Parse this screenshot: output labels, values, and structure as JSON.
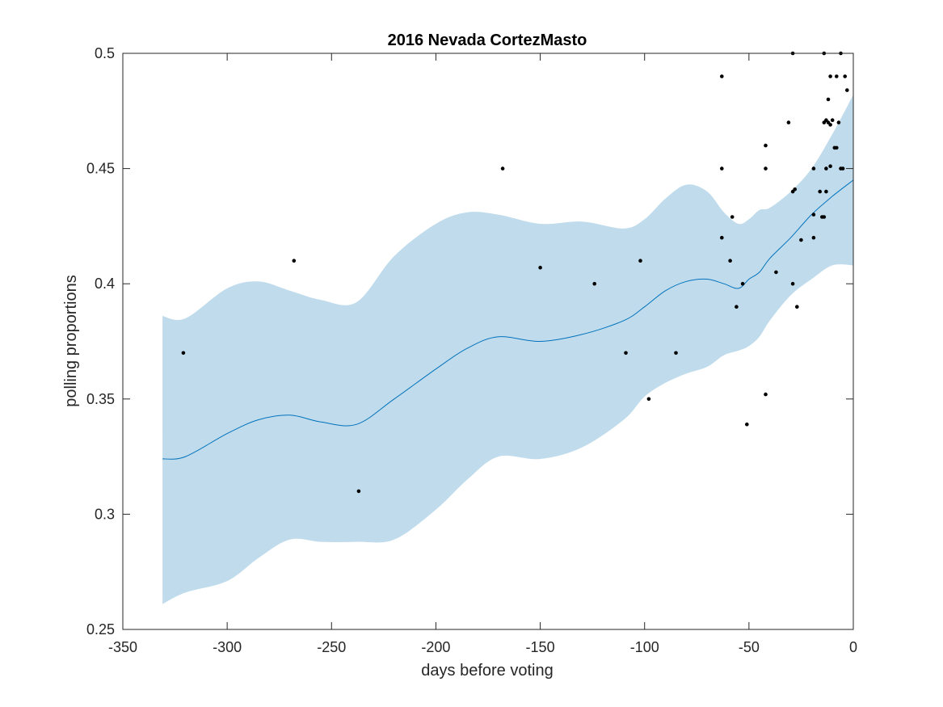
{
  "chart_data": {
    "type": "line",
    "title": "2016 Nevada CortezMasto",
    "xlabel": "days before voting",
    "ylabel": "polling proportions",
    "xlim": [
      -350,
      0
    ],
    "ylim": [
      0.25,
      0.5
    ],
    "xticks": [
      -350,
      -300,
      -250,
      -200,
      -150,
      -100,
      -50,
      0
    ],
    "yticks": [
      0.25,
      0.3,
      0.35,
      0.4,
      0.45,
      0.5
    ],
    "xtick_labels": [
      "-350",
      "-300",
      "-250",
      "-200",
      "-150",
      "-100",
      "-50",
      "0"
    ],
    "ytick_labels": [
      "0.25",
      "0.3",
      "0.35",
      "0.4",
      "0.45",
      "0.5"
    ],
    "grid": false,
    "colors": {
      "band": "#c0dcec",
      "line": "#0072bd",
      "points": "#000000",
      "axes": "#262626"
    },
    "fit": {
      "x": [
        -331,
        -320,
        -300,
        -285,
        -270,
        -255,
        -238,
        -220,
        -200,
        -185,
        -170,
        -150,
        -130,
        -110,
        -100,
        -90,
        -80,
        -70,
        -62,
        -55,
        -50,
        -45,
        -40,
        -30,
        -20,
        -10,
        0
      ],
      "mean": [
        0.324,
        0.325,
        0.335,
        0.341,
        0.343,
        0.34,
        0.339,
        0.35,
        0.363,
        0.372,
        0.377,
        0.375,
        0.378,
        0.384,
        0.39,
        0.397,
        0.401,
        0.402,
        0.4,
        0.398,
        0.402,
        0.405,
        0.411,
        0.42,
        0.43,
        0.438,
        0.445
      ],
      "upper": [
        0.386,
        0.385,
        0.398,
        0.401,
        0.397,
        0.393,
        0.392,
        0.412,
        0.426,
        0.431,
        0.43,
        0.426,
        0.427,
        0.424,
        0.428,
        0.437,
        0.443,
        0.44,
        0.431,
        0.426,
        0.428,
        0.432,
        0.433,
        0.44,
        0.45,
        0.465,
        0.482
      ],
      "lower": [
        0.261,
        0.266,
        0.271,
        0.281,
        0.289,
        0.288,
        0.288,
        0.289,
        0.302,
        0.315,
        0.325,
        0.324,
        0.329,
        0.341,
        0.351,
        0.357,
        0.361,
        0.364,
        0.369,
        0.371,
        0.373,
        0.377,
        0.384,
        0.395,
        0.402,
        0.408,
        0.408
      ]
    },
    "points": [
      {
        "x": -321,
        "y": 0.37
      },
      {
        "x": -268,
        "y": 0.41
      },
      {
        "x": -237,
        "y": 0.31
      },
      {
        "x": -168,
        "y": 0.45
      },
      {
        "x": -150,
        "y": 0.407
      },
      {
        "x": -124,
        "y": 0.4
      },
      {
        "x": -109,
        "y": 0.37
      },
      {
        "x": -102,
        "y": 0.41
      },
      {
        "x": -98,
        "y": 0.35
      },
      {
        "x": -85,
        "y": 0.37
      },
      {
        "x": -63,
        "y": 0.49
      },
      {
        "x": -63,
        "y": 0.45
      },
      {
        "x": -63,
        "y": 0.42
      },
      {
        "x": -59,
        "y": 0.41
      },
      {
        "x": -58,
        "y": 0.429
      },
      {
        "x": -56,
        "y": 0.39
      },
      {
        "x": -53,
        "y": 0.4
      },
      {
        "x": -51,
        "y": 0.339
      },
      {
        "x": -42,
        "y": 0.46
      },
      {
        "x": -42,
        "y": 0.45
      },
      {
        "x": -42,
        "y": 0.352
      },
      {
        "x": -37,
        "y": 0.405
      },
      {
        "x": -31,
        "y": 0.47
      },
      {
        "x": -29,
        "y": 0.5
      },
      {
        "x": -29,
        "y": 0.44
      },
      {
        "x": -28,
        "y": 0.441
      },
      {
        "x": -29,
        "y": 0.4
      },
      {
        "x": -27,
        "y": 0.39
      },
      {
        "x": -25,
        "y": 0.419
      },
      {
        "x": -19,
        "y": 0.45
      },
      {
        "x": -19,
        "y": 0.43
      },
      {
        "x": -19,
        "y": 0.42
      },
      {
        "x": -16,
        "y": 0.44
      },
      {
        "x": -15,
        "y": 0.429
      },
      {
        "x": -14,
        "y": 0.429
      },
      {
        "x": -14,
        "y": 0.5
      },
      {
        "x": -14,
        "y": 0.47
      },
      {
        "x": -13,
        "y": 0.471
      },
      {
        "x": -13,
        "y": 0.45
      },
      {
        "x": -13,
        "y": 0.44
      },
      {
        "x": -12,
        "y": 0.48
      },
      {
        "x": -12,
        "y": 0.47
      },
      {
        "x": -11,
        "y": 0.49
      },
      {
        "x": -11,
        "y": 0.469
      },
      {
        "x": -11,
        "y": 0.451
      },
      {
        "x": -10,
        "y": 0.471
      },
      {
        "x": -9,
        "y": 0.459
      },
      {
        "x": -8,
        "y": 0.49
      },
      {
        "x": -8,
        "y": 0.459
      },
      {
        "x": -7,
        "y": 0.47
      },
      {
        "x": -6,
        "y": 0.5
      },
      {
        "x": -6,
        "y": 0.45
      },
      {
        "x": -5,
        "y": 0.45
      },
      {
        "x": -4,
        "y": 0.49
      },
      {
        "x": -3,
        "y": 0.484
      }
    ]
  }
}
